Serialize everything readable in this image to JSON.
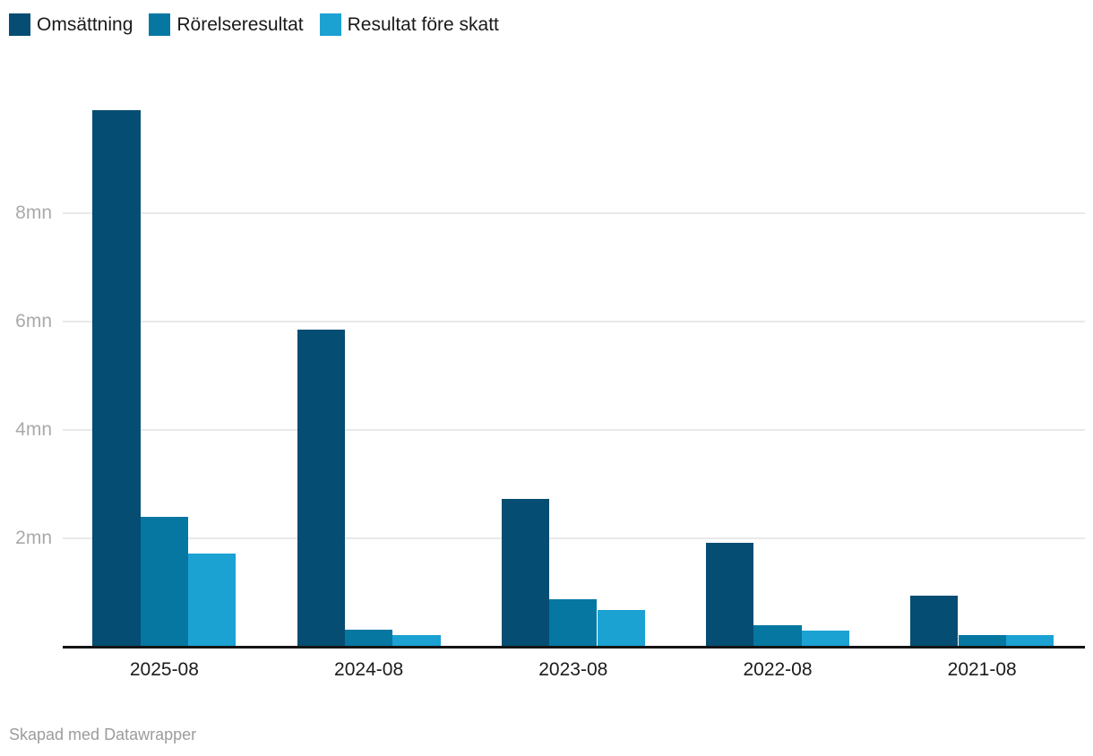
{
  "chart_data": {
    "type": "bar",
    "categories": [
      "2025-08",
      "2024-08",
      "2023-08",
      "2022-08",
      "2021-08"
    ],
    "series": [
      {
        "name": "Omsättning",
        "color": "#054d72",
        "values": [
          9.9,
          5.85,
          2.73,
          1.92,
          0.95
        ]
      },
      {
        "name": "Rörelseresultat",
        "color": "#0577a1",
        "values": [
          2.4,
          0.31,
          0.87,
          0.39,
          0.22
        ]
      },
      {
        "name": "Resultat före skatt",
        "color": "#1ca1d3",
        "values": [
          1.72,
          0.22,
          0.67,
          0.29,
          0.22
        ]
      }
    ],
    "title": "",
    "xlabel": "",
    "ylabel": "",
    "unit": "mn",
    "ylim": [
      0,
      10.45
    ],
    "yticks": [
      {
        "value": 2,
        "label": "2mn"
      },
      {
        "value": 4,
        "label": "4mn"
      },
      {
        "value": 6,
        "label": "6mn"
      },
      {
        "value": 8,
        "label": "8mn"
      }
    ],
    "grid": "horizontal",
    "legend_position": "top-left"
  },
  "colors": {
    "gridline": "#e9e9e9",
    "axis": "#141414",
    "y_tick_text": "#aaaaaa",
    "x_tick_text": "#1c1c1c",
    "legend_text": "#1a1a1a",
    "credit_text": "#9c9c9c"
  },
  "footer": {
    "credit": "Skapad med Datawrapper"
  }
}
